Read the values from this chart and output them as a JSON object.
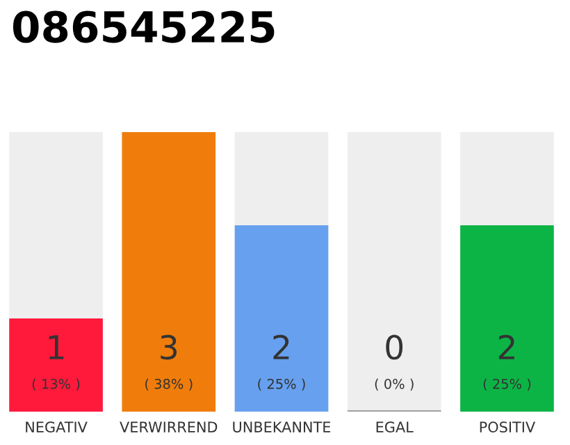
{
  "chart_data": {
    "type": "bar",
    "title": "086545225",
    "categories": [
      "NEGATIV",
      "VERWIRREND",
      "UNBEKANNTE",
      "EGAL",
      "POSITIV"
    ],
    "values": [
      1,
      3,
      2,
      0,
      2
    ],
    "colors": [
      "#ff1a3c",
      "#f07d0b",
      "#67a0ee",
      "#a0a0a0",
      "#0cb446"
    ],
    "value_labels": [
      "1\n( 13% )",
      "3\n( 38% )",
      "2\n( 25% )",
      "0\n( 0% )",
      "2\n( 25% )"
    ],
    "ylim": [
      0,
      3
    ],
    "grid": false,
    "legend": false
  }
}
